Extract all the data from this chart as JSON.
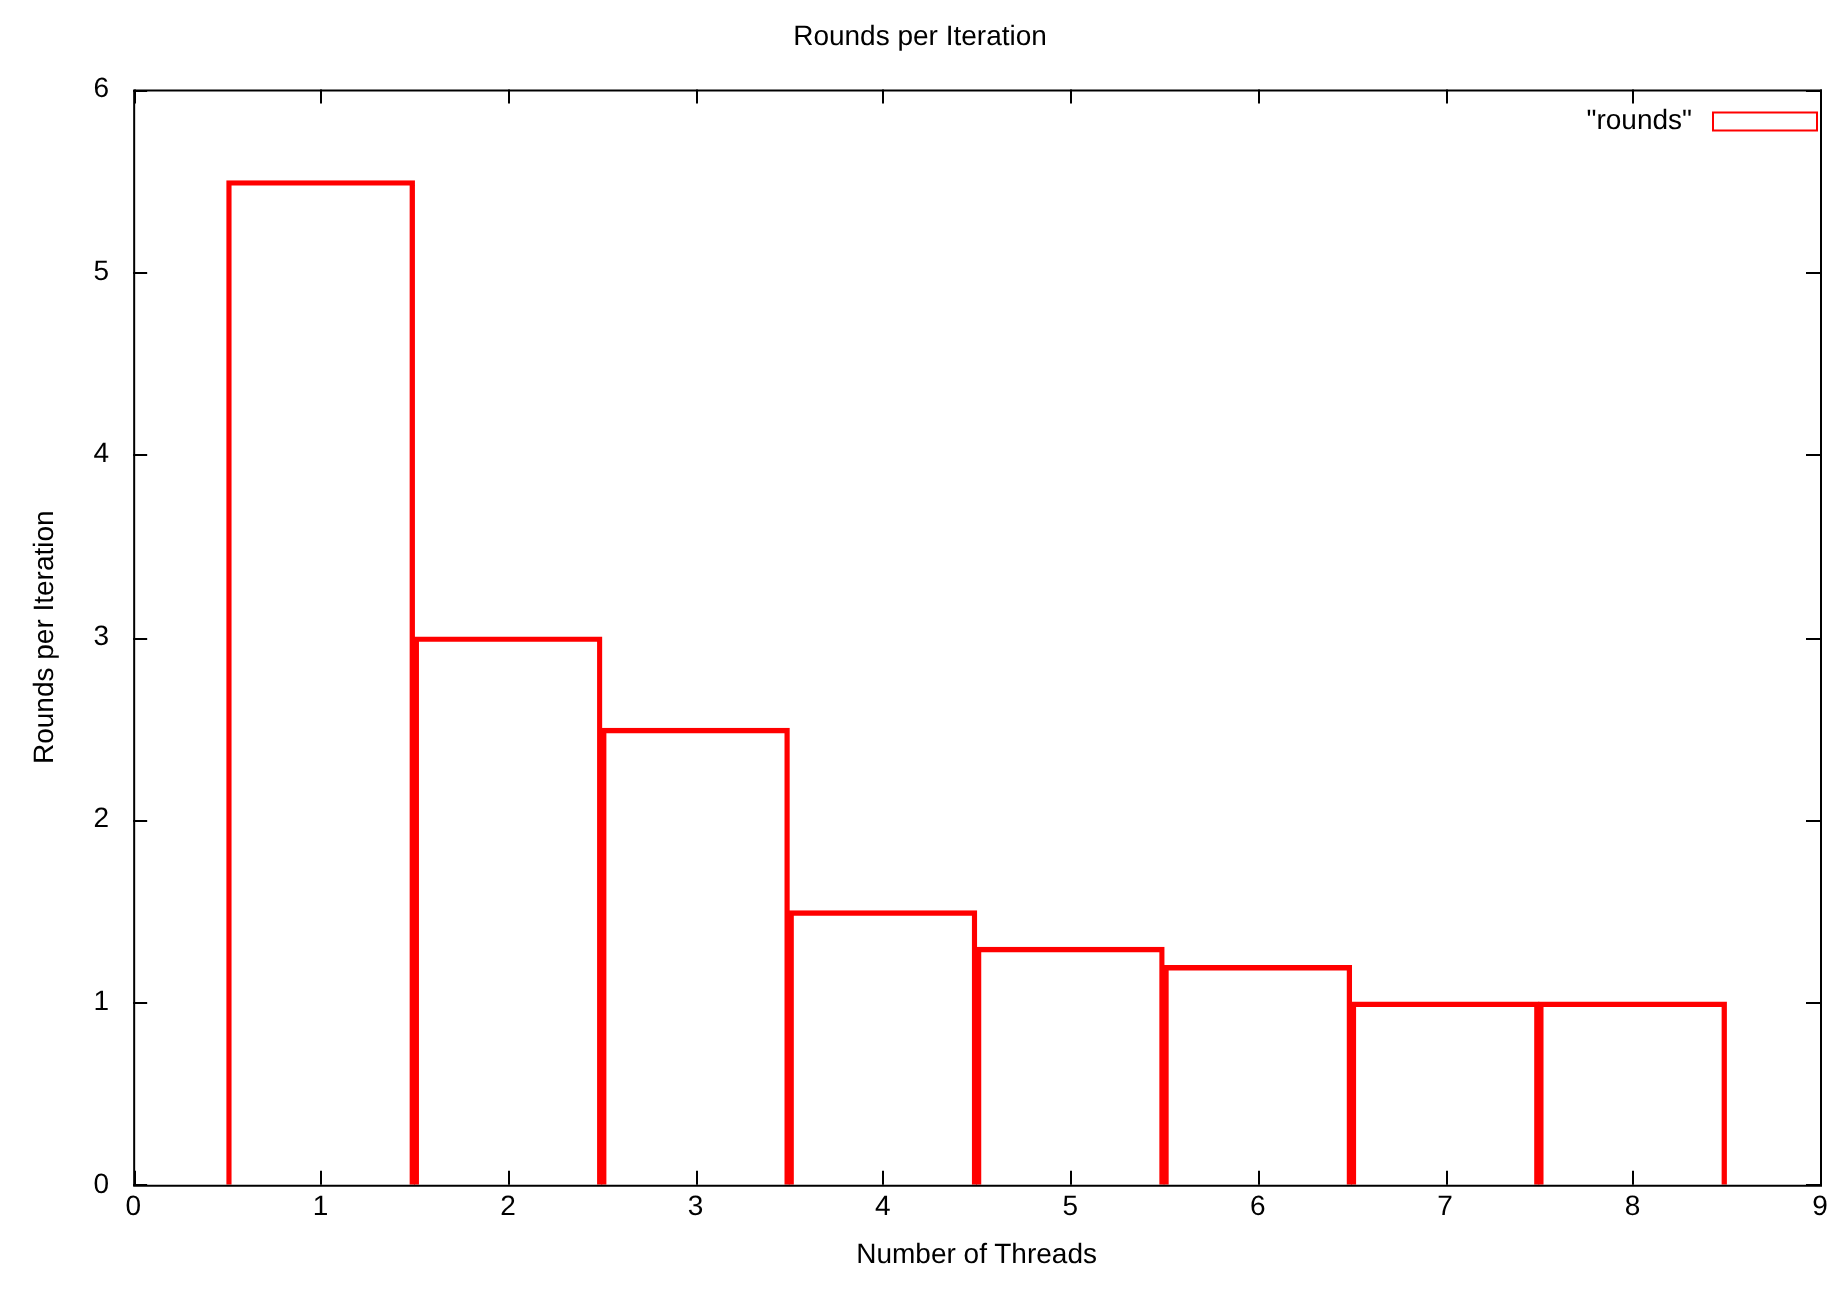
{
  "chart_data": {
    "type": "bar",
    "title": "Rounds per Iteration",
    "xlabel": "Number of Threads",
    "ylabel": "Rounds per Iteration",
    "x": [
      1,
      2,
      3,
      4,
      5,
      6,
      7,
      8
    ],
    "series": [
      {
        "name": "\"rounds\"",
        "color": "#ff0000",
        "values": [
          5.5,
          3,
          2.5,
          1.5,
          1.3,
          1.2,
          1,
          1
        ]
      }
    ],
    "xlim": [
      0,
      9
    ],
    "xticks": [
      0,
      1,
      2,
      3,
      4,
      5,
      6,
      7,
      8,
      9
    ],
    "ylim": [
      0,
      6
    ],
    "yticks": [
      0,
      1,
      2,
      3,
      4,
      5,
      6
    ],
    "grid": false,
    "legend": "top right"
  }
}
